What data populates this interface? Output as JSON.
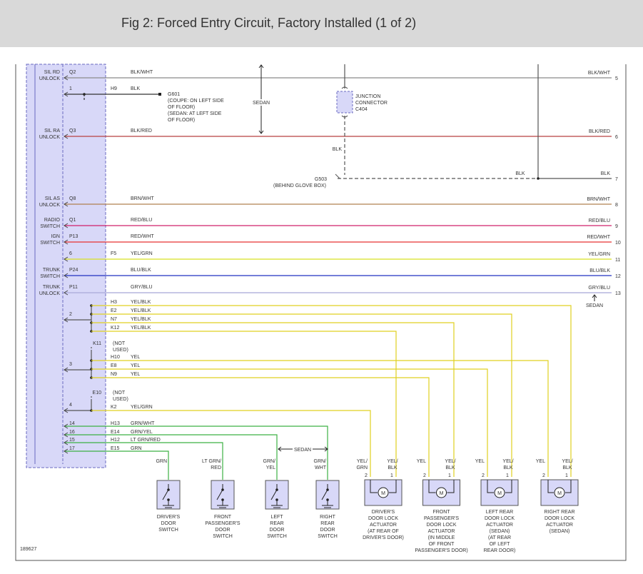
{
  "header": {
    "title": "Fig 2: Forced Entry Circuit, Factory Installed (1 of 2)"
  },
  "main_wires": [
    {
      "module_label": [
        "SIL RD",
        "UNLOCK"
      ],
      "pin": "Q2",
      "color_label": "BLK/WHT",
      "end_label": "BLK/WHT",
      "end_number": 5,
      "color": "#8a8a8a"
    },
    {
      "module_label": [
        "SIL RA",
        "UNLOCK"
      ],
      "pin": "Q3",
      "color_label": "BLK/RED",
      "end_label": "BLK/RED",
      "end_number": 6,
      "color": "#b84040"
    },
    {
      "module_label": [
        "SIL AS",
        "UNLOCK"
      ],
      "pin": "Q8",
      "color_label": "BRN/WHT",
      "end_label": "BRN/WHT",
      "end_number": 8,
      "color": "#b08050"
    },
    {
      "module_label": [
        "RADIO",
        "SWITCH"
      ],
      "pin": "Q1",
      "color_label": "RED/BLU",
      "end_label": "RED/BLU",
      "end_number": 9,
      "color": "#d0206a"
    },
    {
      "module_label": [
        "IGN",
        "SWITCH"
      ],
      "pin": "P13",
      "color_label": "RED/WHT",
      "end_label": "RED/WHT",
      "end_number": 10,
      "color": "#e83030"
    },
    {
      "pin": "6",
      "connector": "F5",
      "color_label": "YEL/GRN",
      "end_label": "YEL/GRN",
      "end_number": 11,
      "color": "#d8e020"
    },
    {
      "module_label": [
        "TRUNK",
        "SWITCH"
      ],
      "pin": "P24",
      "color_label": "BLU/BLK",
      "end_label": "BLU/BLK",
      "end_number": 12,
      "color": "#2030c0"
    },
    {
      "module_label": [
        "TRUNK",
        "UNLOCK"
      ],
      "pin": "P11",
      "color_label": "GRY/BLU",
      "end_label": "GRY/BLU",
      "end_number": 13,
      "color": "#a8a8d8"
    }
  ],
  "ground_wire": {
    "pin": "1",
    "connector": "H9",
    "color_label": "BLK",
    "ground": "G601",
    "note": [
      "(COUPE: ON LEFT SIDE",
      "OF FLOOR)",
      "(SEDAN: AT LEFT SIDE",
      "OF FLOOR)"
    ]
  },
  "sedan_top": "SEDAN",
  "junction": {
    "label": [
      "JUNCTION",
      "CONNECTOR",
      "C404"
    ],
    "wire_label": "BLK",
    "ground": "G503",
    "ground_note": "(BEHIND GLOVE BOX)",
    "mid_label": "BLK",
    "end_label": "BLK",
    "end_number": 7
  },
  "trunk_sedan": "SEDAN",
  "groups": [
    {
      "pin": "2",
      "color": "#e0d020",
      "branches": [
        {
          "connector": "H3",
          "color_label": "YEL/BLK"
        },
        {
          "connector": "E2",
          "color_label": "YEL/BLK"
        },
        {
          "connector": "N7",
          "color_label": "YEL/BLK"
        },
        {
          "connector": "K12",
          "color_label": "YEL/BLK"
        }
      ]
    },
    {
      "pin": "3",
      "color": "#e0d020",
      "unused": {
        "connector": "K11",
        "note": [
          "(NOT",
          "USED)"
        ]
      },
      "branches": [
        {
          "connector": "H10",
          "color_label": "YEL"
        },
        {
          "connector": "E8",
          "color_label": "YEL"
        },
        {
          "connector": "N9",
          "color_label": "YEL"
        }
      ]
    },
    {
      "pin": "4",
      "color": "#e0d020",
      "unused": {
        "connector": "E10",
        "note": [
          "(NOT",
          "USED)"
        ]
      },
      "branches": [
        {
          "connector": "K2",
          "color_label": "YEL/GRN"
        }
      ]
    }
  ],
  "switch_wires": {
    "color": "#3cb043",
    "wires": [
      {
        "pin": "14",
        "connector": "H13",
        "color_label": "GRN/WHT"
      },
      {
        "pin": "16",
        "connector": "E14",
        "color_label": "GRN/YEL"
      },
      {
        "pin": "15",
        "connector": "H12",
        "color_label": "LT GRN/RED"
      },
      {
        "pin": "17",
        "connector": "E15",
        "color_label": "GRN"
      }
    ]
  },
  "sedan_bottom": "SEDAN",
  "switches": [
    {
      "wire_label": [
        "GRN"
      ],
      "name": [
        "DRIVER'S",
        "DOOR",
        "SWITCH"
      ]
    },
    {
      "wire_label": [
        "LT GRN/",
        "RED"
      ],
      "name": [
        "FRONT",
        "PASSENGER'S",
        "DOOR",
        "SWITCH"
      ]
    },
    {
      "wire_label": [
        "GRN/",
        "YEL"
      ],
      "name": [
        "LEFT",
        "REAR",
        "DOOR",
        "SWITCH"
      ]
    },
    {
      "wire_label": [
        "GRN/",
        "WHT"
      ],
      "name": [
        "RIGHT",
        "REAR",
        "DOOR",
        "SWITCH"
      ]
    }
  ],
  "motor_label": "M",
  "actuators": [
    {
      "pins": [
        "2",
        "1"
      ],
      "wire_labels": [
        [
          "YEL/",
          "GRN"
        ],
        [
          "YEL/",
          "BLK"
        ]
      ],
      "name": [
        "DRIVER'S",
        "DOOR LOCK",
        "ACTUATOR",
        "(AT REAR OF",
        "DRIVER'S DOOR)"
      ]
    },
    {
      "pins": [
        "2",
        "1"
      ],
      "wire_labels": [
        [
          "YEL"
        ],
        [
          "YEL/",
          "BLK"
        ]
      ],
      "name": [
        "FRONT",
        "PASSENGER'S",
        "DOOR LOCK",
        "ACTUATOR",
        "(IN MIDDLE",
        "OF FRONT",
        "PASSENGER'S DOOR)"
      ]
    },
    {
      "pins": [
        "2",
        "1"
      ],
      "wire_labels": [
        [
          "YEL"
        ],
        [
          "YEL/",
          "BLK"
        ]
      ],
      "name": [
        "LEFT REAR",
        "DOOR LOCK",
        "ACTUATOR",
        "(SEDAN)",
        "(AT REAR",
        "OF LEFT",
        "REAR DOOR)"
      ]
    },
    {
      "pins": [
        "2",
        "1"
      ],
      "wire_labels": [
        [
          "YEL"
        ],
        [
          "YEL/",
          "BLK"
        ]
      ],
      "name": [
        "RIGHT REAR",
        "DOOR LOCK",
        "ACTUATOR",
        "(SEDAN)"
      ]
    }
  ],
  "footer": {
    "id": "189627"
  }
}
